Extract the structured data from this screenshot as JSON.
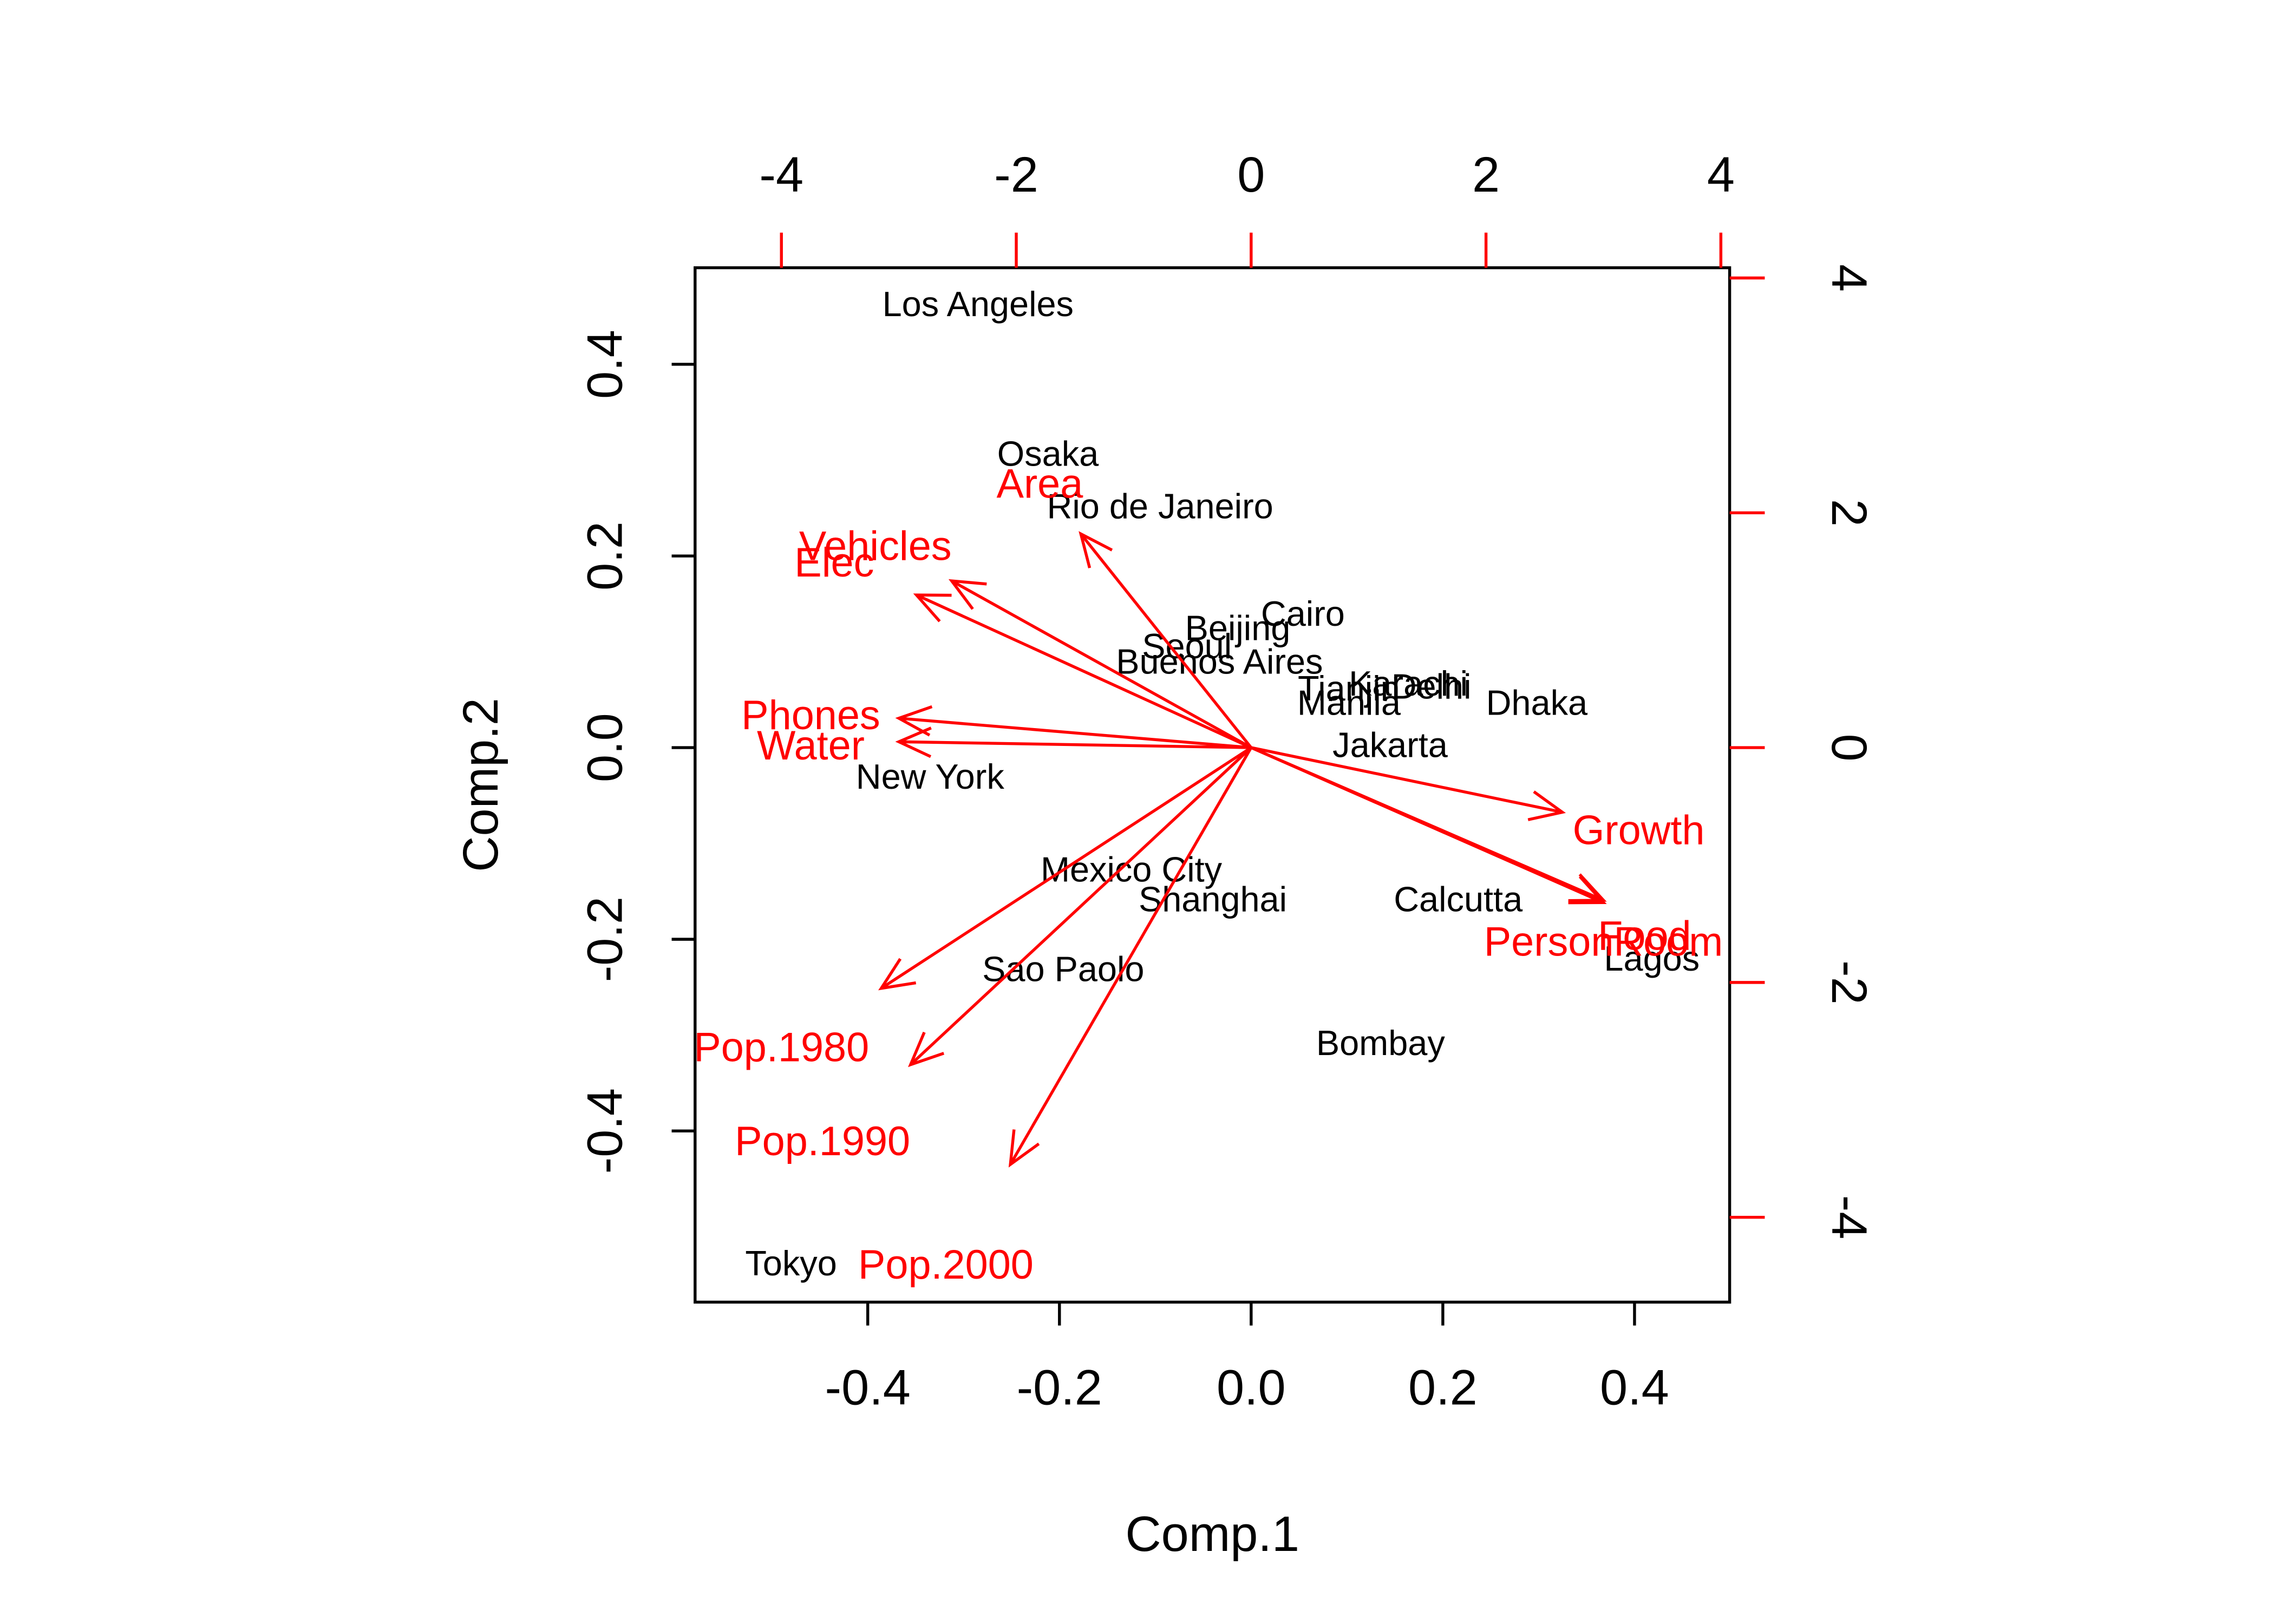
{
  "chart_data": {
    "type": "scatter",
    "subtype": "biplot",
    "title": "",
    "xlabel": "Comp.1",
    "ylabel": "Comp.2",
    "xlim": [
      -0.58,
      0.5
    ],
    "ylim": [
      -0.58,
      0.5
    ],
    "x_ticks": [
      "-0.4",
      "-0.2",
      "0.0",
      "0.2",
      "0.4"
    ],
    "y_ticks": [
      "-0.4",
      "-0.2",
      "0.0",
      "0.2",
      "0.4"
    ],
    "top_axis_ticks": [
      "-4",
      "-2",
      "0",
      "2",
      "4"
    ],
    "right_axis_ticks": [
      "-4",
      "-2",
      "0",
      "2",
      "4"
    ],
    "loading_color": "#ff0000",
    "point_color": "#000000",
    "scores": [
      {
        "name": "Los Angeles",
        "x": -0.285,
        "y": 0.463
      },
      {
        "name": "Osaka",
        "x": -0.212,
        "y": 0.307
      },
      {
        "name": "Rio de Janeiro",
        "x": -0.095,
        "y": 0.252
      },
      {
        "name": "Cairo",
        "x": 0.054,
        "y": 0.14
      },
      {
        "name": "Beijing",
        "x": -0.014,
        "y": 0.125
      },
      {
        "name": "Seoul",
        "x": -0.067,
        "y": 0.106
      },
      {
        "name": "Buenos Aires",
        "x": -0.033,
        "y": 0.09
      },
      {
        "name": "Tianjin",
        "x": 0.102,
        "y": 0.062
      },
      {
        "name": "Karachi",
        "x": 0.164,
        "y": 0.067
      },
      {
        "name": "Delhi",
        "x": 0.188,
        "y": 0.064
      },
      {
        "name": "Manila",
        "x": 0.102,
        "y": 0.047
      },
      {
        "name": "Dhaka",
        "x": 0.298,
        "y": 0.047
      },
      {
        "name": "Jakarta",
        "x": 0.145,
        "y": 0.003
      },
      {
        "name": "New York",
        "x": -0.335,
        "y": -0.03
      },
      {
        "name": "Mexico City",
        "x": -0.125,
        "y": -0.127
      },
      {
        "name": "Shanghai",
        "x": -0.04,
        "y": -0.158
      },
      {
        "name": "Calcutta",
        "x": 0.216,
        "y": -0.158
      },
      {
        "name": "Lagos",
        "x": 0.418,
        "y": -0.22
      },
      {
        "name": "Sao Paolo",
        "x": -0.196,
        "y": -0.231
      },
      {
        "name": "Bombay",
        "x": 0.135,
        "y": -0.308
      },
      {
        "name": "Tokyo",
        "x": -0.48,
        "y": -0.538
      }
    ],
    "loadings": [
      {
        "name": "Area",
        "x": -1.45,
        "y": 1.82
      },
      {
        "name": "Vehicles",
        "x": -2.55,
        "y": 1.42
      },
      {
        "name": "Elec",
        "x": -2.85,
        "y": 1.3
      },
      {
        "name": "Phones",
        "x": -3.0,
        "y": 0.25
      },
      {
        "name": "Water",
        "x": -3.0,
        "y": 0.05
      },
      {
        "name": "Growth",
        "x": 2.65,
        "y": -0.55
      },
      {
        "name": "Food",
        "x": 3.0,
        "y": -1.3
      },
      {
        "name": "PersonRoom",
        "x": 3.0,
        "y": -1.32
      },
      {
        "name": "Pop.1980",
        "x": -3.15,
        "y": -2.05
      },
      {
        "name": "Pop.1990",
        "x": -2.9,
        "y": -2.7
      },
      {
        "name": "Pop.2000",
        "x": -2.05,
        "y": -3.55
      }
    ],
    "loading_label_text": [
      {
        "name": "Area",
        "text": "Area",
        "x": -1.8,
        "y": 2.25
      },
      {
        "name": "Vehicles",
        "text": "Vehicles",
        "x": -3.2,
        "y": 1.72
      },
      {
        "name": "Elec",
        "text": "Elec",
        "x": -3.55,
        "y": 1.58
      },
      {
        "name": "Phones",
        "text": "Phones",
        "x": -3.75,
        "y": 0.28
      },
      {
        "name": "Water",
        "text": "Water",
        "x": -3.75,
        "y": 0.02
      },
      {
        "name": "Growth",
        "text": "Growth",
        "x": 3.3,
        "y": -0.7
      },
      {
        "name": "Food",
        "text": "Food",
        "x": 3.35,
        "y": -1.6
      },
      {
        "name": "PersonRoom",
        "text": "PersonRoom",
        "x": 3.0,
        "y": -1.65
      },
      {
        "name": "Pop.1980",
        "text": "Pop.1980",
        "x": -4.0,
        "y": -2.55
      },
      {
        "name": "Pop.1990",
        "text": "Pop.1990",
        "x": -3.65,
        "y": -3.35
      },
      {
        "name": "Pop.2000",
        "text": "Pop.2000",
        "x": -2.6,
        "y": -4.4
      }
    ]
  }
}
